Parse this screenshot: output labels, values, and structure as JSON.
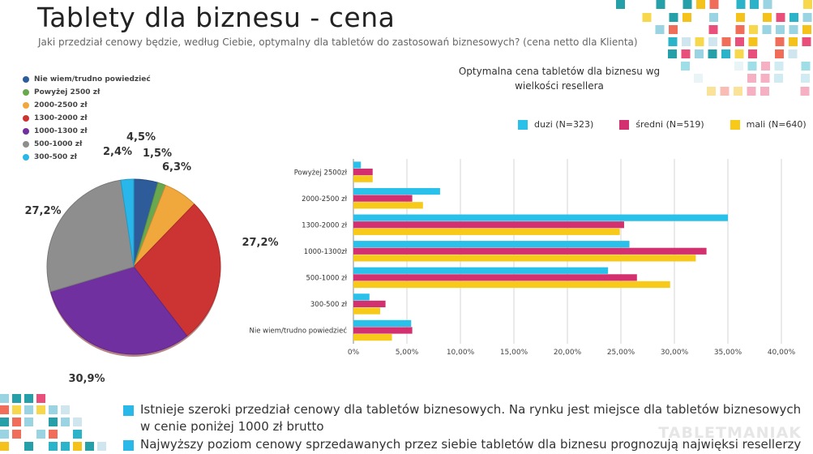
{
  "title": "Tablety dla biznesu - cena",
  "subtitle": "Jaki przedział cenowy  będzie, według Ciebie, optymalny dla tabletów do zastosowań biznesowych? (cena netto dla  Klienta)",
  "chart_data": [
    {
      "type": "pie",
      "legend": [
        {
          "label": "Nie wiem/trudno powiedzieć",
          "color": "#2e5c9a"
        },
        {
          "label": "Powyżej 2500 zł",
          "color": "#6aa84f"
        },
        {
          "label": "2000-2500 zł",
          "color": "#f0a73c"
        },
        {
          "label": "1300-2000 zł",
          "color": "#cc3333"
        },
        {
          "label": "1000-1300 zł",
          "color": "#7030a0"
        },
        {
          "label": "500-1000 zł",
          "color": "#8e8e8e"
        },
        {
          "label": "300-500 zł",
          "color": "#29b6e8"
        }
      ],
      "slices": [
        {
          "label": "Nie wiem/trudno powiedzieć",
          "value": 4.5,
          "value_label": "4,5%"
        },
        {
          "label": "Powyżej 2500 zł",
          "value": 1.5,
          "value_label": "1,5%"
        },
        {
          "label": "2000-2500 zł",
          "value": 6.3,
          "value_label": "6,3%"
        },
        {
          "label": "1300-2000 zł",
          "value": 27.2,
          "value_label": "27,2%"
        },
        {
          "label": "1000-1300 zł",
          "value": 30.9,
          "value_label": "30,9%"
        },
        {
          "label": "500-1000 zł",
          "value": 27.2,
          "value_label": "27,2%"
        },
        {
          "label": "300-500 zł",
          "value": 2.4,
          "value_label": "2,4%"
        }
      ]
    },
    {
      "type": "bar",
      "orientation": "horizontal",
      "title_line1": "Optymalna cena tabletów dla biznesu wg",
      "title_line2": "wielkości resellera",
      "categories": [
        "Powyżej 2500zł",
        "2000-2500 zł",
        "1300-2000 zł",
        "1000-1300zł",
        "500-1000 zł",
        "300-500 zł",
        "Nie wiem/trudno powiedzieć"
      ],
      "series": [
        {
          "name": "duzi (N=323)",
          "color": "#29c0ea",
          "values": [
            0.7,
            8.1,
            35.0,
            25.8,
            23.8,
            1.5,
            5.4
          ]
        },
        {
          "name": "średni (N=519)",
          "color": "#d3306f",
          "values": [
            1.8,
            5.5,
            25.3,
            33.0,
            26.5,
            3.0,
            5.5
          ]
        },
        {
          "name": "mali (N=640)",
          "color": "#f7c919",
          "values": [
            1.8,
            6.5,
            24.9,
            32.0,
            29.6,
            2.5,
            3.6
          ]
        }
      ],
      "xlim": [
        0,
        40
      ],
      "ticks": [
        0,
        5,
        10,
        15,
        20,
        25,
        30,
        35,
        40
      ],
      "tick_labels": [
        "0%",
        "5,00%",
        "10,00%",
        "15,00%",
        "20,00%",
        "25,00%",
        "30,00%",
        "35,00%",
        "40,00%"
      ]
    }
  ],
  "bullets": [
    "Istnieje szeroki przedział cenowy dla tabletów biznesowych. Na rynku jest miejsce dla tabletów biznesowych w cenie poniżej 1000 zł brutto",
    "Najwyższy poziom cenowy sprzedawanych przez siebie tabletów dla biznesu prognozują najwięksi resellerzy"
  ],
  "logo_text": "TABLETMANIAK"
}
